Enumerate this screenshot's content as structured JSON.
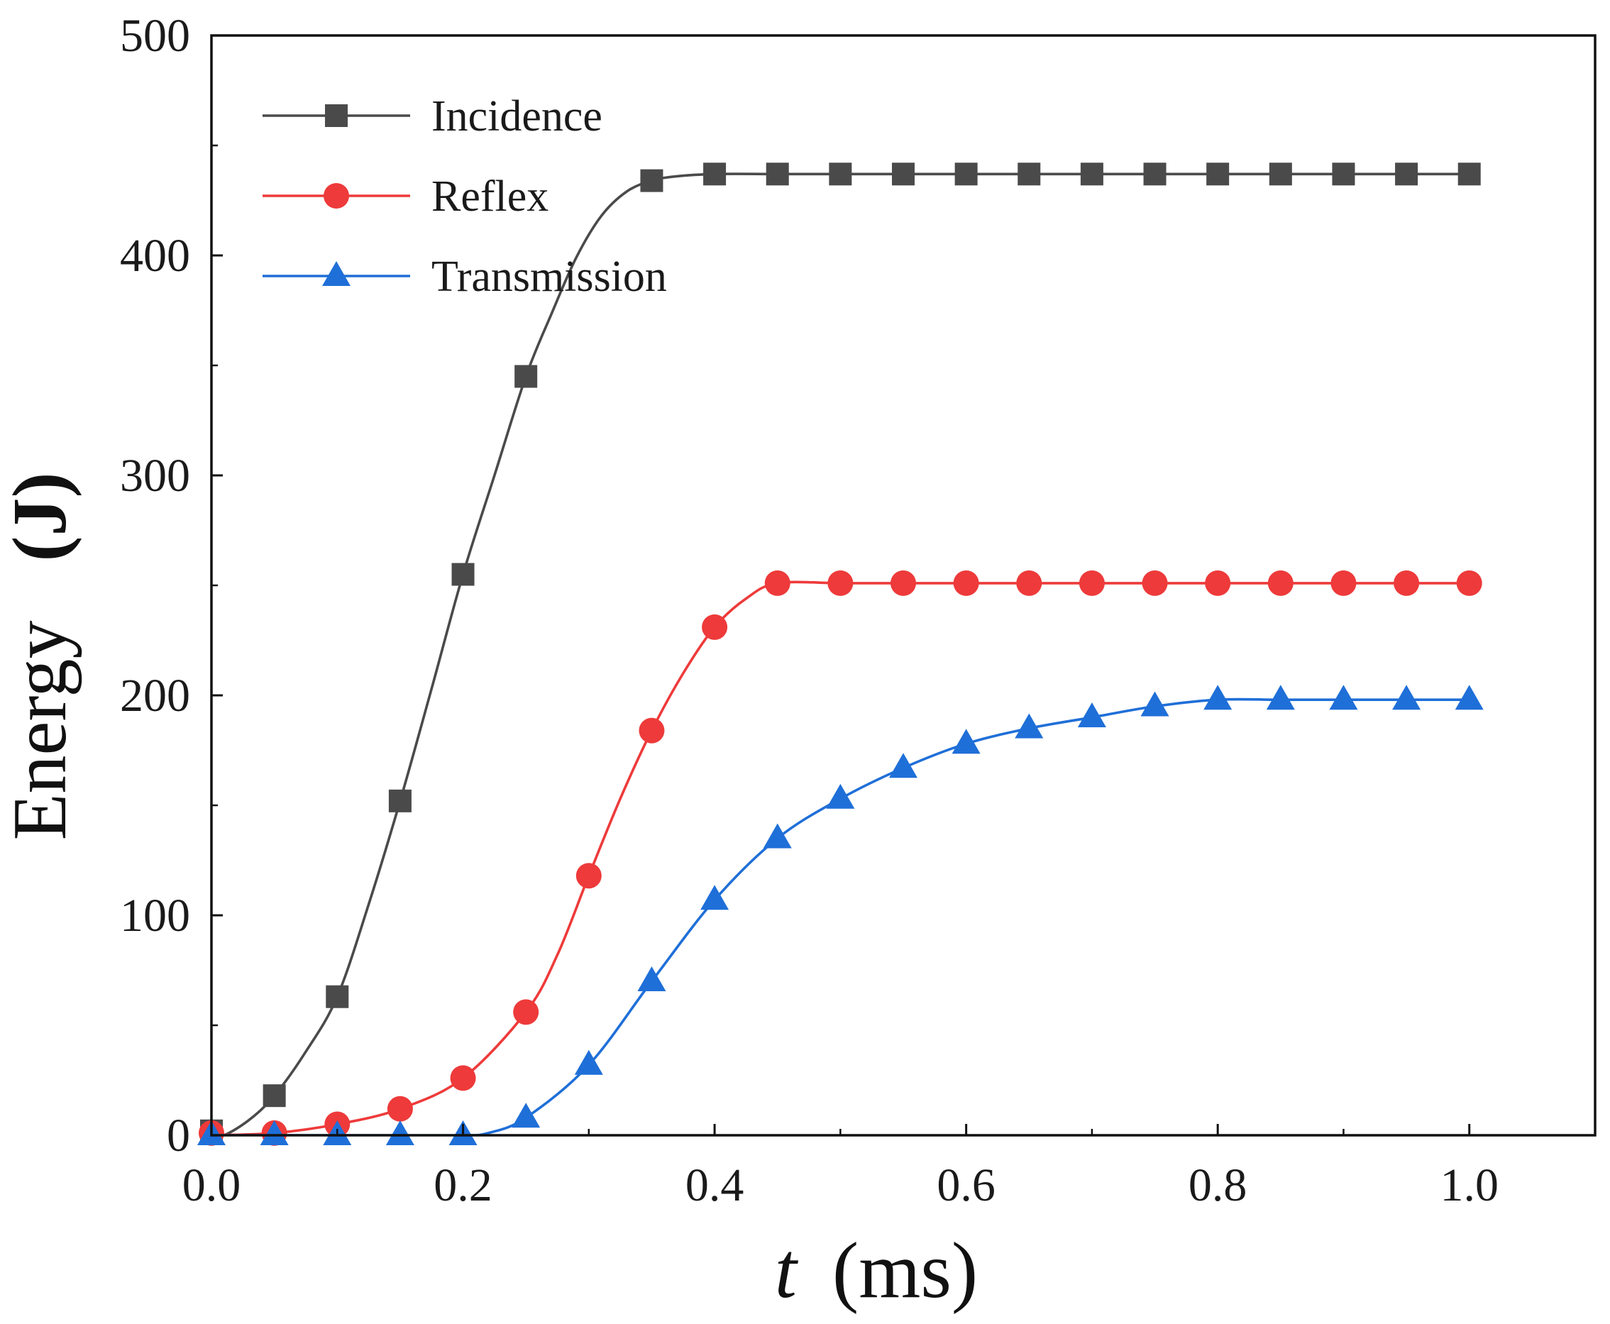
{
  "chart_data": {
    "type": "line",
    "xlabel_italic": "t",
    "xlabel_unit": "(ms)",
    "ylabel": "Energy",
    "ylabel_unit": "(J)",
    "xlim": [
      0.0,
      1.1
    ],
    "ylim": [
      0,
      500
    ],
    "x_ticks": [
      0.0,
      0.2,
      0.4,
      0.6,
      0.8,
      1.0
    ],
    "x_tick_labels": [
      "0.0",
      "0.2",
      "0.4",
      "0.6",
      "0.8",
      "1.0"
    ],
    "y_ticks": [
      0,
      100,
      200,
      300,
      400,
      500
    ],
    "y_tick_labels": [
      "0",
      "100",
      "200",
      "300",
      "400",
      "500"
    ],
    "grid": false,
    "legend_position": "top-left",
    "series": [
      {
        "name": "Incidence",
        "color": "#4a4a4a",
        "marker": "square",
        "curve_x": [
          0,
          0.01,
          0.03,
          0.05,
          0.075,
          0.1,
          0.125,
          0.15,
          0.175,
          0.2,
          0.225,
          0.25,
          0.27,
          0.29,
          0.31,
          0.33,
          0.35,
          0.37,
          0.4,
          0.45,
          0.5,
          0.55,
          0.6,
          0.65,
          0.7,
          0.75,
          0.8,
          0.85,
          0.9,
          0.95,
          1.0
        ],
        "curve_y": [
          0,
          0,
          7,
          18,
          38,
          63,
          105,
          152,
          203,
          255,
          300,
          345,
          373,
          399,
          418,
          429,
          434,
          436,
          437,
          437,
          437,
          437,
          437,
          437,
          437,
          437,
          437,
          437,
          437,
          437,
          437
        ],
        "markers_x": [
          0,
          0.05,
          0.1,
          0.15,
          0.2,
          0.25,
          0.35,
          0.4,
          0.45,
          0.5,
          0.55,
          0.6,
          0.65,
          0.7,
          0.75,
          0.8,
          0.85,
          0.9,
          0.95,
          1.0
        ],
        "markers_y": [
          2,
          18,
          63,
          152,
          255,
          345,
          434,
          437,
          437,
          437,
          437,
          437,
          437,
          437,
          437,
          437,
          437,
          437,
          437,
          437
        ]
      },
      {
        "name": "Reflex",
        "color": "#ee3a3a",
        "marker": "circle",
        "curve_x": [
          0,
          0.05,
          0.1,
          0.15,
          0.2,
          0.25,
          0.275,
          0.3,
          0.325,
          0.35,
          0.375,
          0.4,
          0.425,
          0.45,
          0.5,
          0.55,
          0.6,
          0.65,
          0.7,
          0.75,
          0.8,
          0.85,
          0.9,
          0.95,
          1.0
        ],
        "curve_y": [
          0,
          1,
          5,
          12,
          26,
          56,
          82,
          118,
          153,
          184,
          210,
          231,
          244,
          251,
          251,
          251,
          251,
          251,
          251,
          251,
          251,
          251,
          251,
          251,
          251
        ],
        "markers_x": [
          0,
          0.05,
          0.1,
          0.15,
          0.2,
          0.25,
          0.3,
          0.35,
          0.4,
          0.45,
          0.5,
          0.55,
          0.6,
          0.65,
          0.7,
          0.75,
          0.8,
          0.85,
          0.9,
          0.95,
          1.0
        ],
        "markers_y": [
          1,
          1,
          5,
          12,
          26,
          56,
          118,
          184,
          231,
          251,
          251,
          251,
          251,
          251,
          251,
          251,
          251,
          251,
          251,
          251,
          251
        ]
      },
      {
        "name": "Transmission",
        "color": "#1f6fd8",
        "marker": "triangle",
        "curve_x": [
          0,
          0.05,
          0.1,
          0.15,
          0.2,
          0.22,
          0.25,
          0.3,
          0.35,
          0.4,
          0.45,
          0.5,
          0.55,
          0.6,
          0.65,
          0.7,
          0.75,
          0.8,
          0.85,
          0.9,
          0.95,
          1.0
        ],
        "curve_y": [
          0,
          0,
          0,
          0,
          0,
          1,
          8,
          32,
          70,
          107,
          135,
          153,
          167,
          178,
          185,
          190,
          195,
          198,
          198,
          198,
          198,
          198
        ],
        "markers_x": [
          0,
          0.05,
          0.1,
          0.15,
          0.2,
          0.25,
          0.3,
          0.35,
          0.4,
          0.45,
          0.5,
          0.55,
          0.6,
          0.65,
          0.7,
          0.75,
          0.8,
          0.85,
          0.9,
          0.95,
          1.0
        ],
        "markers_y": [
          0,
          0,
          0,
          0,
          0,
          8,
          32,
          70,
          107,
          135,
          153,
          167,
          178,
          185,
          190,
          195,
          198,
          198,
          198,
          198,
          198
        ]
      }
    ]
  }
}
